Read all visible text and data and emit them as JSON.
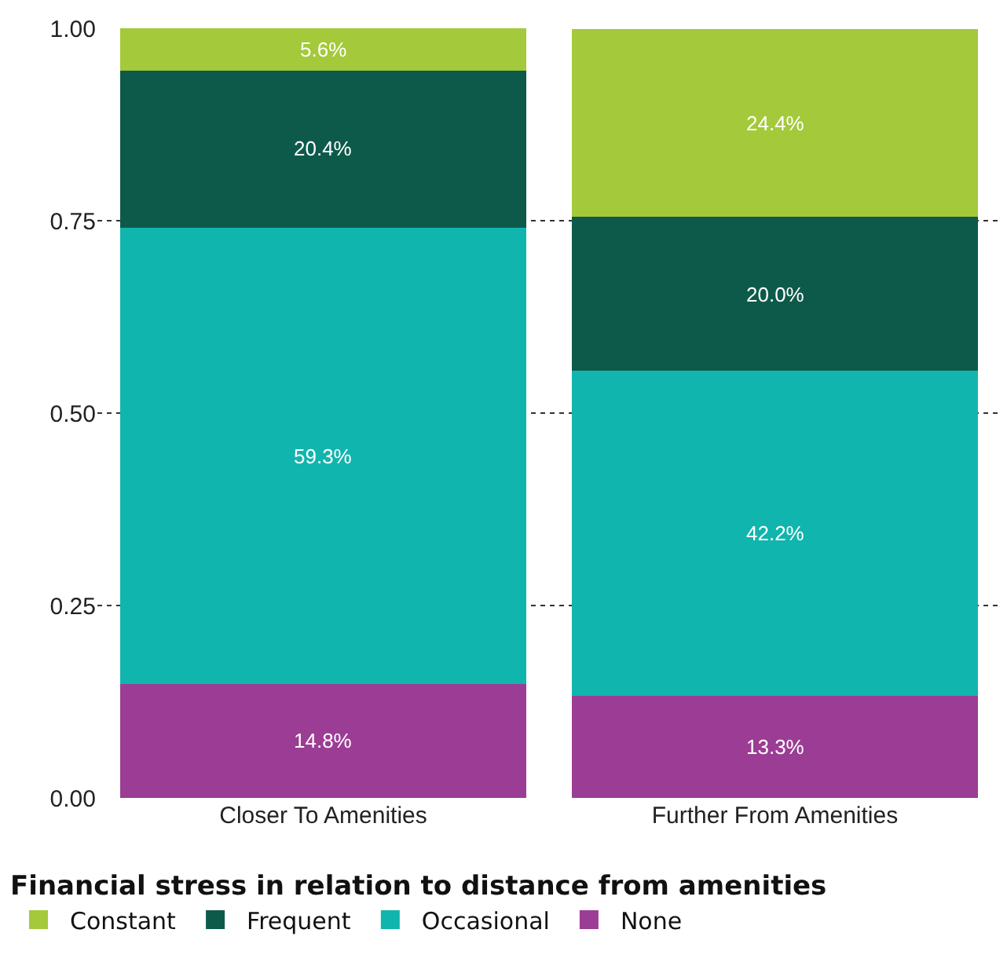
{
  "chart_data": {
    "type": "bar",
    "stacked": true,
    "legend_title": "Financial stress in relation to distance from amenities",
    "categories": [
      "Closer To Amenities",
      "Further From Amenities"
    ],
    "series": [
      {
        "name": "None",
        "color": "#9b3d94",
        "values": [
          0.148,
          0.133
        ],
        "value_labels": [
          "14.8%",
          "13.3%"
        ]
      },
      {
        "name": "Occasional",
        "color": "#10b5ae",
        "values": [
          0.593,
          0.422
        ],
        "value_labels": [
          "59.3%",
          "42.2%"
        ]
      },
      {
        "name": "Frequent",
        "color": "#0d5a4a",
        "values": [
          0.204,
          0.2
        ],
        "value_labels": [
          "20.4%",
          "20.0%"
        ]
      },
      {
        "name": "Constant",
        "color": "#a4c93a",
        "values": [
          0.056,
          0.244
        ],
        "value_labels": [
          "5.6%",
          "24.4%"
        ]
      }
    ],
    "ylim": [
      0,
      1
    ],
    "yticks": [
      {
        "value": 0,
        "label": "0.00"
      },
      {
        "value": 0.25,
        "label": "0.25"
      },
      {
        "value": 0.5,
        "label": "0.50"
      },
      {
        "value": 0.75,
        "label": "0.75"
      },
      {
        "value": 1,
        "label": "1.00"
      }
    ],
    "grid": "y",
    "legend": "bottom"
  }
}
